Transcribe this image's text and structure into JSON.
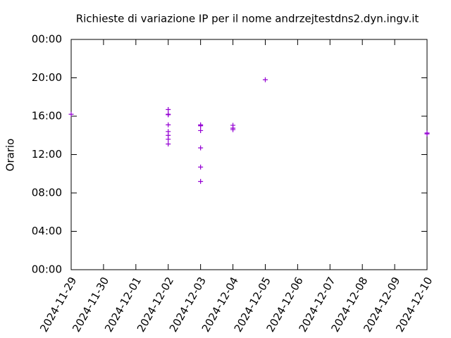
{
  "chart_data": {
    "type": "scatter",
    "title": "Richieste di variazione IP per il nome andrzejtestdns2.dyn.ingv.it",
    "ylabel": "Orario",
    "series": [
      {
        "color": "#9400d3",
        "x": [
          "2024-11-29",
          "2024-12-02",
          "2024-12-02",
          "2024-12-02",
          "2024-12-02",
          "2024-12-02",
          "2024-12-02",
          "2024-12-02",
          "2024-12-02",
          "2024-12-03",
          "2024-12-03",
          "2024-12-03",
          "2024-12-03",
          "2024-12-03",
          "2024-12-03",
          "2024-12-04",
          "2024-12-04",
          "2024-12-04",
          "2024-12-05",
          "2024-12-10",
          "2024-12-10"
        ],
        "values": [
          16.2,
          16.7,
          16.2,
          16.15,
          15.1,
          14.4,
          14.0,
          13.6,
          13.1,
          15.1,
          15.0,
          14.5,
          12.7,
          10.7,
          9.2,
          15.05,
          14.75,
          14.6,
          19.8,
          14.25,
          14.15
        ]
      }
    ],
    "xlim": [
      "2024-11-29",
      "2024-12-10"
    ],
    "xticks": [
      "2024-11-29",
      "2024-11-30",
      "2024-12-01",
      "2024-12-02",
      "2024-12-03",
      "2024-12-04",
      "2024-12-05",
      "2024-12-06",
      "2024-12-07",
      "2024-12-08",
      "2024-12-09",
      "2024-12-10"
    ],
    "ylim": [
      0,
      24
    ],
    "yticks": [
      {
        "value": 0,
        "label": "00:00"
      },
      {
        "value": 4,
        "label": "04:00"
      },
      {
        "value": 8,
        "label": "08:00"
      },
      {
        "value": 12,
        "label": "12:00"
      },
      {
        "value": 16,
        "label": "16:00"
      },
      {
        "value": 20,
        "label": "20:00"
      },
      {
        "value": 24,
        "label": "00:00"
      }
    ],
    "grid": false
  }
}
